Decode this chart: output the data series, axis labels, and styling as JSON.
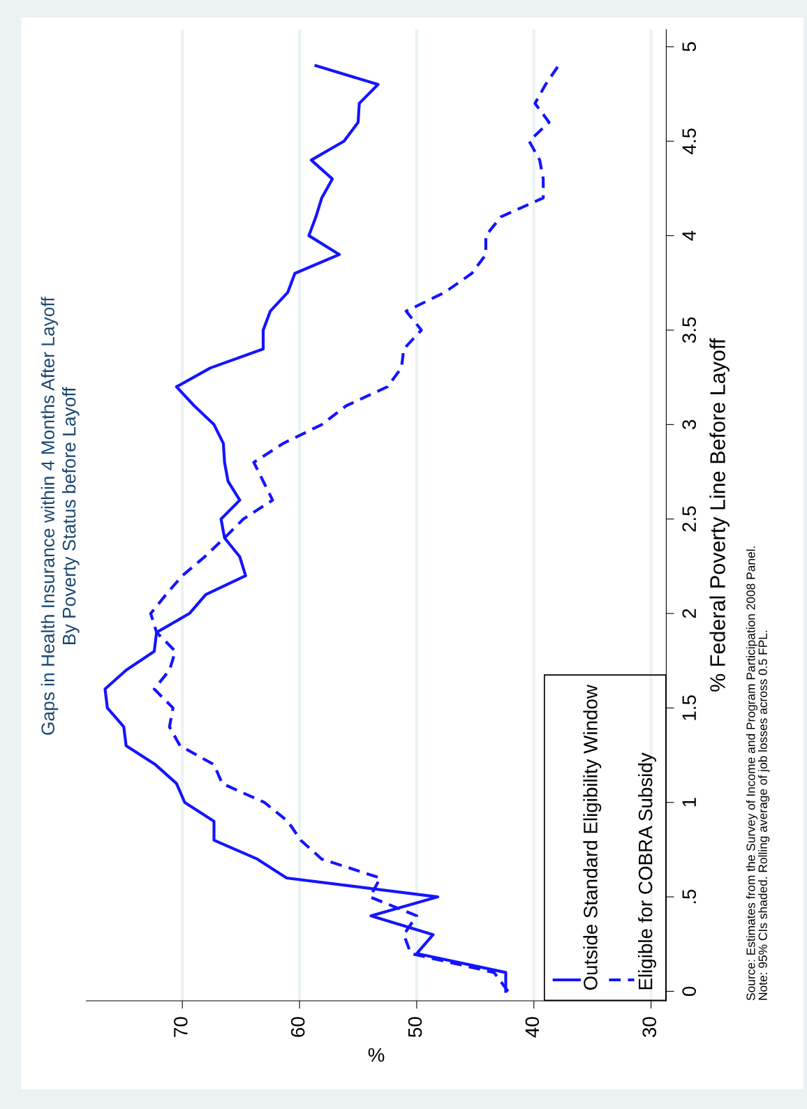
{
  "chart_data": {
    "type": "line",
    "title": "Gaps in Health Insurance within 4 Months After Layoff",
    "subtitle": "By Poverty Status before Layoff",
    "xlabel": "%",
    "ylabel": "% Federal Poverty Line Before Layoff",
    "annotations": [
      "Source: Estimates from the Survey of Income and Program Participation 2008 Panel.",
      "Note: 95% CIs shaded. Rolling average of job losses across 0.5 FPL."
    ],
    "series": [
      {
        "name": "Outside Standard Eligibility Window",
        "color": "#1414ff",
        "line_style": "solid",
        "x": [
          42.4,
          42.4,
          50.0,
          48.6,
          53.9,
          48.2,
          61.1,
          63.6,
          67.3,
          67.3,
          69.8,
          70.5,
          72.3,
          74.8,
          75.0,
          76.4,
          76.6,
          74.8,
          72.4,
          72.2,
          69.4,
          68.0,
          64.6,
          65.1,
          66.4,
          66.7,
          65.1,
          66.1,
          66.4,
          66.5,
          67.3,
          69.0,
          70.5,
          67.6,
          63.1,
          63.1,
          62.5,
          61.0,
          60.4,
          56.6,
          59.2,
          58.6,
          58.1,
          57.2,
          59.0,
          56.2,
          55.0,
          54.9,
          53.3,
          58.6
        ],
        "values": [
          0,
          0.1,
          0.2,
          0.3,
          0.4,
          0.5,
          0.6,
          0.7,
          0.8,
          0.9,
          1.0,
          1.1,
          1.2,
          1.3,
          1.4,
          1.5,
          1.6,
          1.7,
          1.8,
          1.9,
          2.0,
          2.1,
          2.2,
          2.3,
          2.4,
          2.5,
          2.6,
          2.7,
          2.8,
          2.9,
          3.0,
          3.1,
          3.2,
          3.3,
          3.4,
          3.5,
          3.6,
          3.7,
          3.8,
          3.9,
          4.0,
          4.1,
          4.2,
          4.3,
          4.4,
          4.5,
          4.6,
          4.7,
          4.8,
          4.9
        ]
      },
      {
        "name": "Eligible for COBRA Subsidy",
        "color": "#1414ff",
        "line_style": "dashed",
        "x": [
          42.2,
          43.4,
          50.5,
          51.1,
          50.0,
          54.0,
          53.1,
          58.1,
          59.9,
          61.0,
          63.0,
          66.6,
          67.3,
          70.2,
          71.1,
          70.8,
          72.4,
          71.1,
          70.6,
          72.2,
          72.7,
          71.4,
          70.0,
          68.1,
          66.4,
          64.8,
          62.3,
          63.1,
          63.9,
          61.4,
          58.1,
          56.0,
          52.5,
          51.3,
          51.1,
          49.6,
          50.9,
          47.6,
          45.3,
          44.1,
          44.1,
          42.8,
          39.2,
          39.2,
          39.5,
          40.4,
          38.7,
          39.9,
          39.0,
          37.9
        ],
        "values": [
          0,
          0.1,
          0.2,
          0.3,
          0.4,
          0.5,
          0.6,
          0.7,
          0.8,
          0.9,
          1.0,
          1.1,
          1.2,
          1.3,
          1.4,
          1.5,
          1.6,
          1.7,
          1.8,
          1.9,
          2.0,
          2.1,
          2.2,
          2.3,
          2.4,
          2.5,
          2.6,
          2.7,
          2.8,
          2.9,
          3.0,
          3.1,
          3.2,
          3.3,
          3.4,
          3.5,
          3.6,
          3.7,
          3.8,
          3.9,
          4.0,
          4.1,
          4.2,
          4.3,
          4.4,
          4.5,
          4.6,
          4.7,
          4.8,
          4.9
        ]
      }
    ],
    "ylim": [
      -0.05,
      5.09
    ],
    "yticks": [
      0,
      {
        "value": 0.5,
        "label": ".5"
      },
      1,
      1.5,
      2,
      2.5,
      3,
      3.5,
      4,
      4.5,
      5
    ],
    "xlim": [
      78.2,
      28.7
    ],
    "xticks": [
      30,
      40,
      50,
      60,
      70
    ],
    "grid": "x",
    "legend": "bottom right"
  }
}
